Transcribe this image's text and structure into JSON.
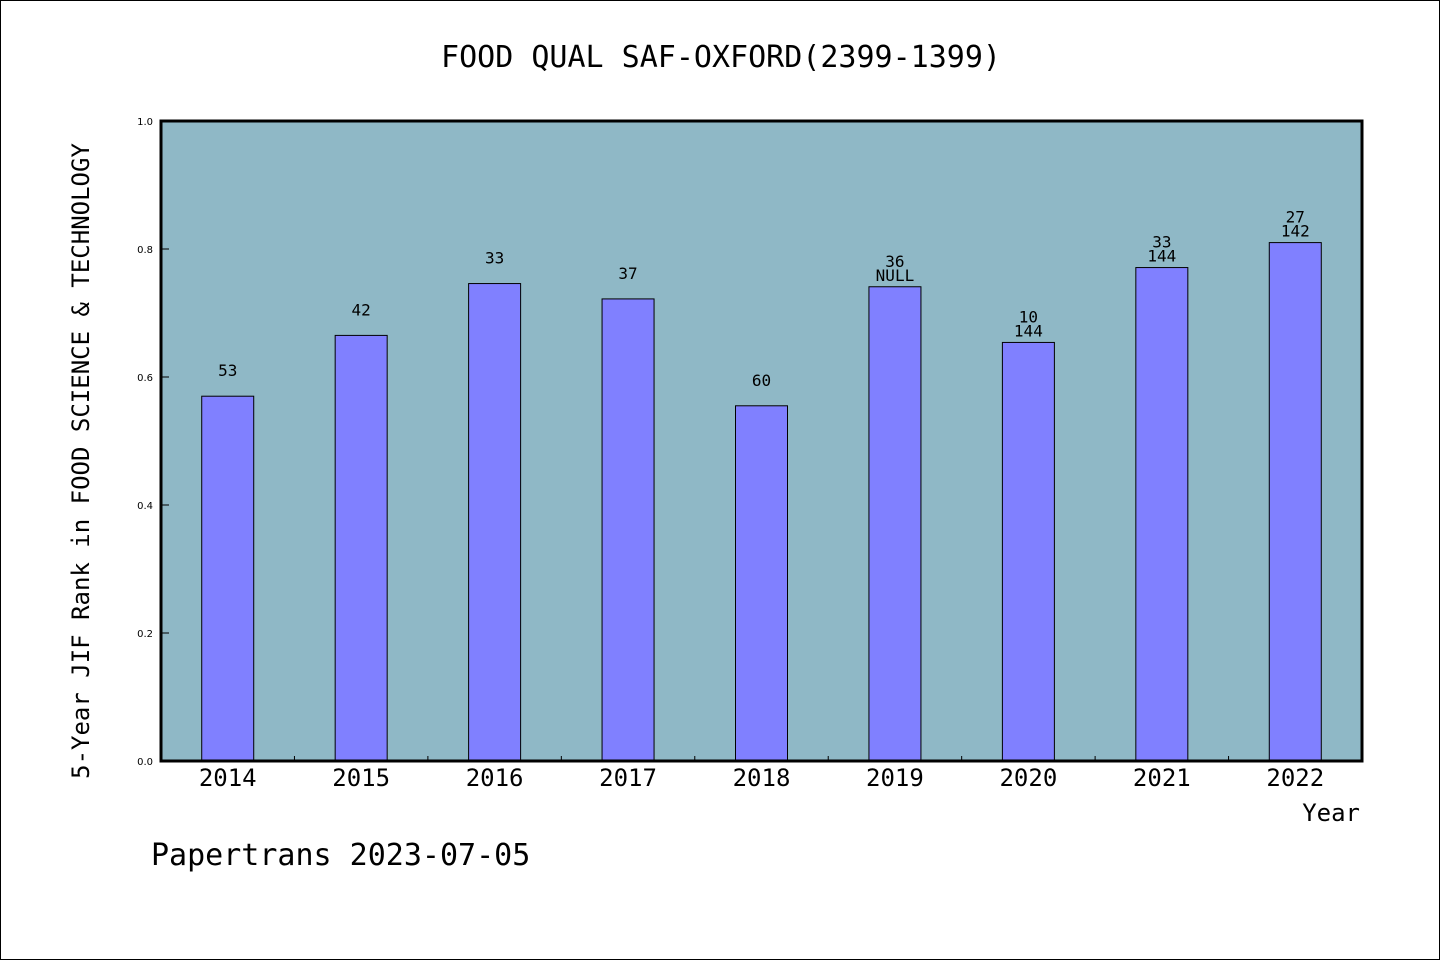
{
  "chart_data": {
    "type": "bar",
    "title": "FOOD QUAL SAF-OXFORD(2399-1399)",
    "xlabel": "Year",
    "ylabel": "5-Year JIF Rank in FOOD SCIENCE & TECHNOLOGY",
    "ylim": [
      0,
      1.0
    ],
    "yticks": [
      "0.0",
      "0.2",
      "0.4",
      "0.6",
      "0.8",
      "1.0"
    ],
    "grid": false,
    "categories": [
      "2014",
      "2015",
      "2016",
      "2017",
      "2018",
      "2019",
      "2020",
      "2021",
      "2022"
    ],
    "values": [
      0.57,
      0.665,
      0.746,
      0.722,
      0.555,
      0.741,
      0.654,
      0.771,
      0.81
    ],
    "bar_labels": [
      [
        "53"
      ],
      [
        "42"
      ],
      [
        "33"
      ],
      [
        "37"
      ],
      [
        "60"
      ],
      [
        "36",
        "NULL"
      ],
      [
        "10",
        "144"
      ],
      [
        "33",
        "144"
      ],
      [
        "27",
        "142"
      ]
    ],
    "colors": {
      "plot_background": "#8fb8c6",
      "bar_fill": "#8080ff",
      "bar_stroke": "#000000"
    }
  },
  "footer": {
    "credit": "Papertrans 2023-07-05"
  }
}
